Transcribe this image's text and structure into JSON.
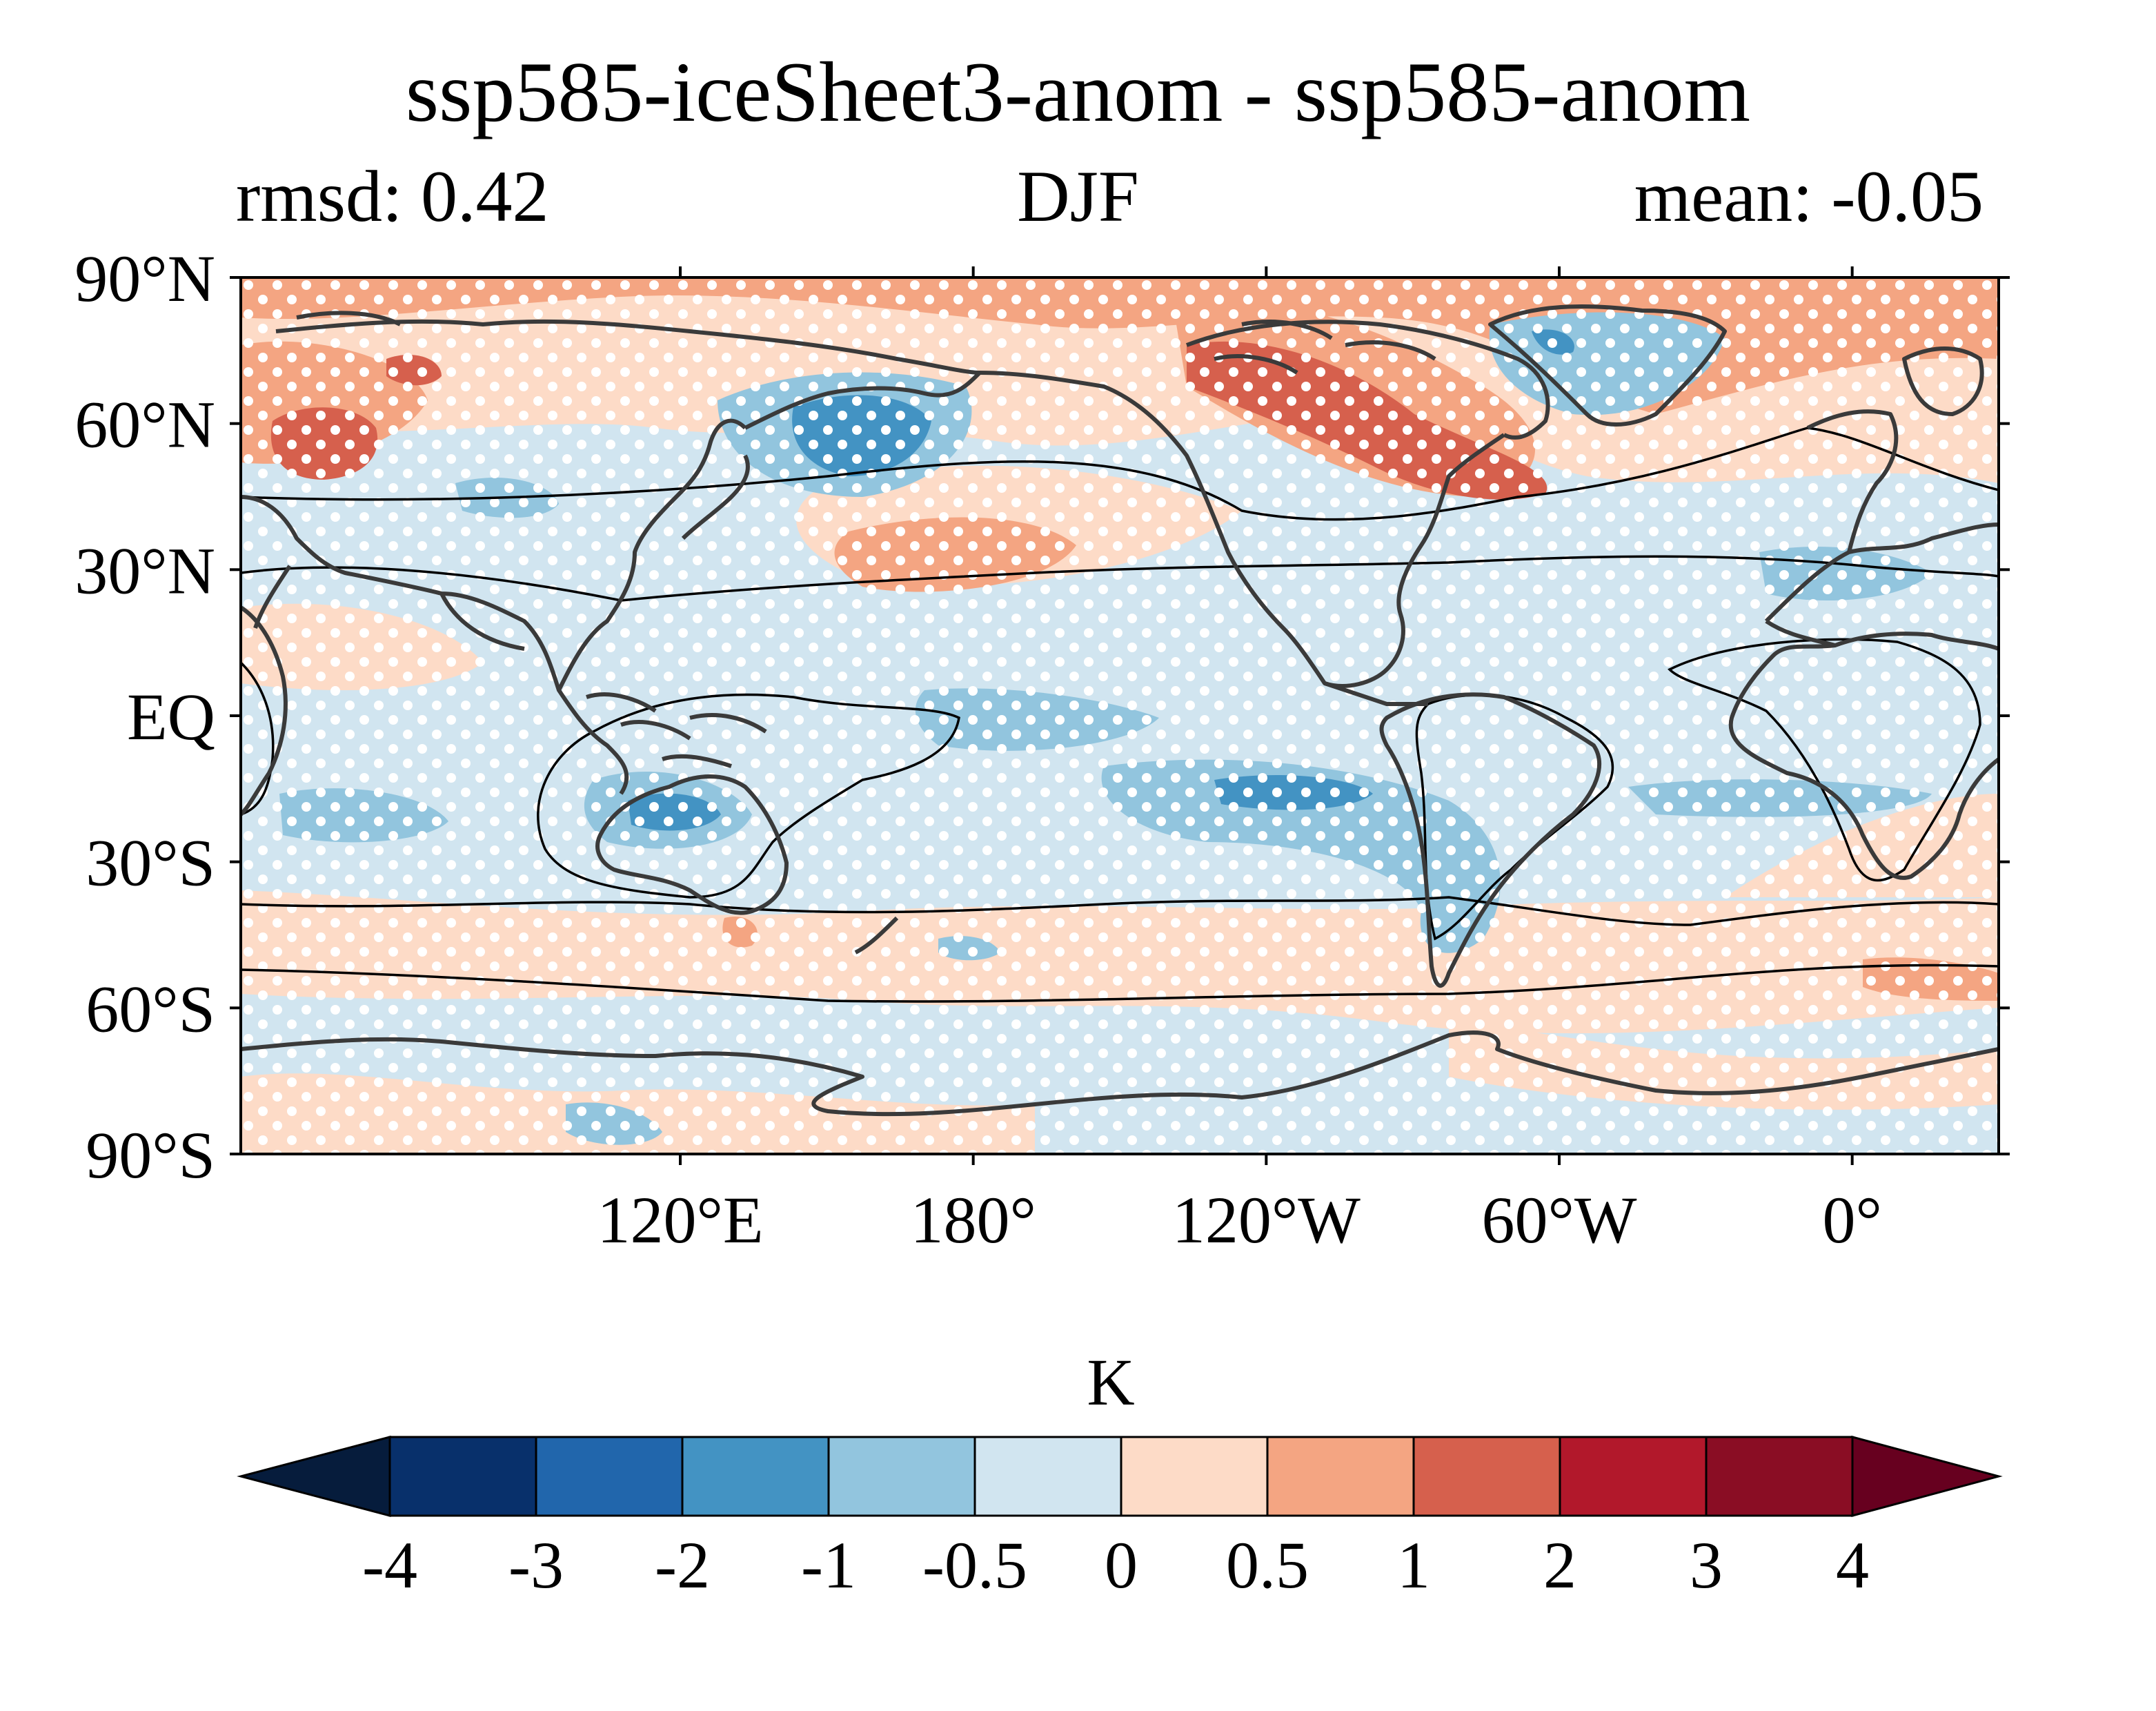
{
  "title": "ssp585-iceSheet3-anom - ssp585-anom",
  "subtitle_left": "rmsd: 0.42",
  "subtitle_center": "DJF",
  "subtitle_right": "mean: -0.05",
  "map": {
    "projection": "PlateCarree",
    "central_longitude": 180,
    "lon_range": [
      30,
      390
    ],
    "lat_range": [
      -90,
      90
    ],
    "y_ticks": [
      {
        "lat": 90,
        "label": "90°N"
      },
      {
        "lat": 60,
        "label": "60°N"
      },
      {
        "lat": 30,
        "label": "30°N"
      },
      {
        "lat": 0,
        "label": "EQ"
      },
      {
        "lat": -30,
        "label": "30°S"
      },
      {
        "lat": -60,
        "label": "60°S"
      },
      {
        "lat": -90,
        "label": "90°S"
      }
    ],
    "x_ticks": [
      {
        "lon": 120,
        "label": "120°E"
      },
      {
        "lon": 180,
        "label": "180°"
      },
      {
        "lon": 240,
        "label": "120°W"
      },
      {
        "lon": 300,
        "label": "60°W"
      },
      {
        "lon": 360,
        "label": "0°"
      }
    ],
    "stippling": "white dots mark non-significant areas",
    "coastline_color": "#3a3a3a",
    "contour_line_color": "#000000"
  },
  "colorbar": {
    "label": "K",
    "levels": [
      -4,
      -3,
      -2,
      -1,
      -0.5,
      0,
      0.5,
      1,
      2,
      3,
      4
    ],
    "tick_labels": [
      "-4",
      "-3",
      "-2",
      "-1",
      "-0.5",
      "0",
      "0.5",
      "1",
      "2",
      "3",
      "4"
    ],
    "colors": [
      "#08306b",
      "#2166ac",
      "#4393c3",
      "#92c5de",
      "#d1e5f0",
      "#fddbc7",
      "#f4a582",
      "#d6604d",
      "#b2182b",
      "#8a0d24"
    ],
    "under_color": "#061c3c",
    "over_color": "#67001f",
    "extend": "both"
  }
}
